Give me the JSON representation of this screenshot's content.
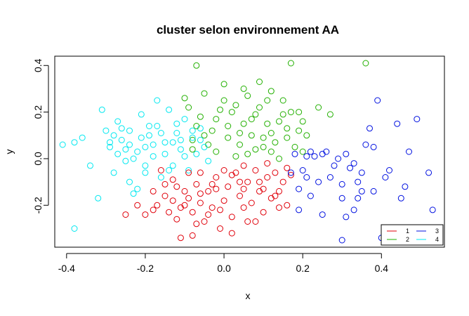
{
  "chart_data": {
    "type": "scatter",
    "title": "cluster selon environnement AA",
    "xlabel": "x",
    "ylabel": "y",
    "xlim": [
      -0.43,
      0.56
    ],
    "ylim": [
      -0.38,
      0.44
    ],
    "xticks": [
      "-0.4",
      "-0.2",
      "0.0",
      "0.2",
      "0.4"
    ],
    "yticks": [
      "-0.2",
      "0.0",
      "0.2",
      "0.4"
    ],
    "xtick_values": [
      -0.4,
      -0.2,
      0.0,
      0.2,
      0.4
    ],
    "ytick_values": [
      -0.2,
      0.0,
      0.2,
      0.4
    ],
    "legend_position": "bottom-right",
    "marker": "open-circle",
    "series": [
      {
        "name": "1",
        "color": "#e0000a",
        "points": [
          [
            -0.25,
            -0.24
          ],
          [
            -0.22,
            -0.2
          ],
          [
            -0.2,
            -0.24
          ],
          [
            -0.18,
            -0.22
          ],
          [
            -0.17,
            -0.2
          ],
          [
            -0.15,
            -0.16
          ],
          [
            -0.14,
            -0.23
          ],
          [
            -0.13,
            -0.18
          ],
          [
            -0.12,
            -0.12
          ],
          [
            -0.11,
            -0.21
          ],
          [
            -0.1,
            -0.14
          ],
          [
            -0.09,
            -0.17
          ],
          [
            -0.08,
            -0.23
          ],
          [
            -0.07,
            -0.11
          ],
          [
            -0.06,
            -0.19
          ],
          [
            -0.05,
            -0.27
          ],
          [
            -0.04,
            -0.14
          ],
          [
            -0.03,
            -0.21
          ],
          [
            -0.02,
            -0.08
          ],
          [
            -0.01,
            -0.3
          ],
          [
            0.0,
            -0.18
          ],
          [
            0.01,
            -0.12
          ],
          [
            0.02,
            -0.25
          ],
          [
            0.03,
            -0.06
          ],
          [
            0.04,
            -0.16
          ],
          [
            0.05,
            -0.21
          ],
          [
            0.06,
            -0.1
          ],
          [
            0.07,
            -0.19
          ],
          [
            0.08,
            -0.05
          ],
          [
            0.09,
            -0.14
          ],
          [
            0.1,
            -0.23
          ],
          [
            0.11,
            -0.08
          ],
          [
            0.12,
            -0.17
          ],
          [
            0.13,
            -0.06
          ],
          [
            0.14,
            -0.14
          ],
          [
            0.15,
            -0.1
          ],
          [
            0.16,
            -0.2
          ],
          [
            0.17,
            -0.07
          ],
          [
            -0.08,
            -0.33
          ],
          [
            -0.11,
            -0.34
          ],
          [
            0.02,
            -0.32
          ],
          [
            -0.16,
            -0.05
          ],
          [
            -0.06,
            -0.06
          ],
          [
            0.0,
            -0.05
          ],
          [
            0.05,
            -0.03
          ],
          [
            -0.13,
            -0.09
          ],
          [
            -0.03,
            -0.11
          ],
          [
            0.1,
            -0.13
          ],
          [
            0.06,
            -0.27
          ],
          [
            -0.18,
            -0.14
          ]
        ]
      },
      {
        "name": "2",
        "color": "#22b000",
        "points": [
          [
            -0.07,
            0.4
          ],
          [
            0.17,
            0.41
          ],
          [
            0.36,
            0.41
          ],
          [
            -0.1,
            0.26
          ],
          [
            0.0,
            0.32
          ],
          [
            0.05,
            0.3
          ],
          [
            0.09,
            0.33
          ],
          [
            0.12,
            0.29
          ],
          [
            -0.05,
            0.28
          ],
          [
            0.15,
            0.25
          ],
          [
            0.19,
            0.2
          ],
          [
            -0.09,
            0.22
          ],
          [
            0.02,
            0.2
          ],
          [
            0.07,
            0.17
          ],
          [
            0.11,
            0.15
          ],
          [
            0.16,
            0.13
          ],
          [
            -0.06,
            0.18
          ],
          [
            -0.03,
            0.12
          ],
          [
            0.01,
            0.09
          ],
          [
            0.04,
            0.06
          ],
          [
            0.08,
            0.04
          ],
          [
            0.13,
            0.07
          ],
          [
            0.18,
            0.05
          ],
          [
            0.21,
            0.1
          ],
          [
            -0.02,
            0.03
          ],
          [
            0.03,
            0.01
          ],
          [
            0.06,
            0.02
          ],
          [
            0.1,
            0.09
          ],
          [
            0.14,
            0.0
          ],
          [
            0.24,
            0.22
          ],
          [
            0.27,
            0.19
          ],
          [
            0.0,
            0.25
          ],
          [
            0.05,
            0.15
          ],
          [
            -0.08,
            0.08
          ],
          [
            0.09,
            0.22
          ],
          [
            0.15,
            0.19
          ],
          [
            0.2,
            0.16
          ],
          [
            0.12,
            0.03
          ],
          [
            -0.04,
            0.06
          ],
          [
            0.07,
            0.1
          ]
        ]
      },
      {
        "name": "3",
        "color": "#0010e0",
        "points": [
          [
            0.18,
            0.02
          ],
          [
            0.2,
            -0.05
          ],
          [
            0.22,
            0.03
          ],
          [
            0.24,
            -0.1
          ],
          [
            0.26,
            0.03
          ],
          [
            0.28,
            -0.03
          ],
          [
            0.3,
            -0.17
          ],
          [
            0.31,
            0.02
          ],
          [
            0.32,
            -0.04
          ],
          [
            0.33,
            -0.22
          ],
          [
            0.34,
            -0.1
          ],
          [
            0.35,
            -0.14
          ],
          [
            0.36,
            0.06
          ],
          [
            0.37,
            0.13
          ],
          [
            0.38,
            -0.14
          ],
          [
            0.39,
            0.25
          ],
          [
            0.4,
            -0.34
          ],
          [
            0.42,
            -0.05
          ],
          [
            0.44,
            0.15
          ],
          [
            0.46,
            -0.12
          ],
          [
            0.47,
            0.03
          ],
          [
            0.49,
            0.17
          ],
          [
            0.52,
            -0.06
          ],
          [
            0.53,
            -0.22
          ],
          [
            0.3,
            -0.35
          ],
          [
            0.35,
            -0.06
          ],
          [
            0.22,
            -0.16
          ],
          [
            0.19,
            -0.22
          ],
          [
            0.25,
            -0.24
          ],
          [
            0.41,
            -0.08
          ],
          [
            0.29,
            0.0
          ],
          [
            0.23,
            0.01
          ],
          [
            0.38,
            0.05
          ],
          [
            0.31,
            -0.25
          ],
          [
            0.45,
            -0.17
          ]
        ]
      },
      {
        "name": "4",
        "color": "#00e8f0",
        "points": [
          [
            -0.41,
            0.06
          ],
          [
            -0.38,
            0.07
          ],
          [
            -0.36,
            0.09
          ],
          [
            -0.34,
            -0.03
          ],
          [
            -0.31,
            0.21
          ],
          [
            -0.3,
            0.12
          ],
          [
            -0.29,
            0.05
          ],
          [
            -0.28,
            -0.06
          ],
          [
            -0.27,
            0.16
          ],
          [
            -0.26,
            0.08
          ],
          [
            -0.25,
            -0.01
          ],
          [
            -0.24,
            0.12
          ],
          [
            -0.23,
            -0.15
          ],
          [
            -0.22,
            0.03
          ],
          [
            -0.21,
            0.19
          ],
          [
            -0.2,
            -0.06
          ],
          [
            -0.19,
            0.1
          ],
          [
            -0.18,
            0.01
          ],
          [
            -0.17,
            0.14
          ],
          [
            -0.16,
            -0.08
          ],
          [
            -0.15,
            0.07
          ],
          [
            -0.14,
            0.21
          ],
          [
            -0.13,
            -0.03
          ],
          [
            -0.12,
            0.11
          ],
          [
            -0.11,
            0.04
          ],
          [
            -0.1,
            0.17
          ],
          [
            -0.09,
            -0.05
          ],
          [
            -0.08,
            0.09
          ],
          [
            -0.07,
            0.02
          ],
          [
            -0.06,
            0.13
          ],
          [
            -0.05,
            0.05
          ],
          [
            -0.04,
            -0.01
          ],
          [
            -0.17,
            0.25
          ],
          [
            -0.32,
            -0.17
          ],
          [
            -0.38,
            -0.3
          ],
          [
            -0.22,
            -0.13
          ],
          [
            -0.27,
            0.02
          ],
          [
            -0.2,
            0.05
          ],
          [
            -0.13,
            0.07
          ],
          [
            -0.24,
            0.06
          ]
        ]
      },
      {
        "name": "",
        "color": "#e0000a",
        "points": [
          [
            -0.02,
            -0.13
          ],
          [
            -0.12,
            -0.26
          ],
          [
            0.14,
            -0.21
          ],
          [
            -0.09,
            -0.06
          ],
          [
            0.04,
            -0.1
          ],
          [
            -0.04,
            -0.24
          ],
          [
            0.11,
            -0.02
          ],
          [
            -0.15,
            -0.11
          ],
          [
            0.08,
            -0.27
          ],
          [
            -0.06,
            -0.15
          ],
          [
            0.02,
            -0.07
          ],
          [
            0.13,
            -0.16
          ],
          [
            -0.1,
            -0.2
          ],
          [
            0.05,
            -0.13
          ],
          [
            -0.01,
            -0.22
          ],
          [
            0.09,
            -0.1
          ],
          [
            -0.07,
            -0.28
          ],
          [
            0.16,
            -0.04
          ]
        ]
      },
      {
        "name": "",
        "color": "#22b000",
        "points": [
          [
            0.03,
            0.23
          ],
          [
            -0.07,
            0.14
          ],
          [
            0.12,
            0.11
          ],
          [
            0.17,
            0.2
          ],
          [
            -0.02,
            0.17
          ],
          [
            0.06,
            0.27
          ],
          [
            0.1,
            0.05
          ],
          [
            0.19,
            0.12
          ],
          [
            -0.05,
            0.1
          ],
          [
            0.14,
            0.16
          ],
          [
            0.01,
            0.14
          ],
          [
            0.08,
            0.19
          ],
          [
            -0.08,
            0.04
          ],
          [
            0.16,
            0.09
          ],
          [
            0.04,
            0.11
          ],
          [
            0.11,
            0.25
          ],
          [
            0.2,
            0.03
          ],
          [
            -0.01,
            0.21
          ]
        ]
      },
      {
        "name": "",
        "color": "#00e8f0",
        "points": [
          [
            -0.28,
            0.1
          ],
          [
            -0.19,
            0.14
          ],
          [
            -0.11,
            0.08
          ],
          [
            -0.23,
            0.0
          ],
          [
            -0.15,
            0.02
          ],
          [
            -0.26,
            0.13
          ],
          [
            -0.08,
            0.12
          ],
          [
            -0.2,
            -0.03
          ],
          [
            -0.12,
            0.15
          ],
          [
            -0.25,
            0.04
          ],
          [
            -0.16,
            0.11
          ],
          [
            -0.29,
            0.07
          ],
          [
            -0.1,
            0.01
          ],
          [
            -0.21,
            0.09
          ],
          [
            -0.14,
            -0.05
          ],
          [
            -0.18,
            0.06
          ],
          [
            -0.06,
            0.08
          ],
          [
            -0.24,
            -0.1
          ]
        ]
      },
      {
        "name": "",
        "color": "#0010e0",
        "points": [
          [
            0.21,
            0.01
          ],
          [
            0.27,
            -0.08
          ],
          [
            0.33,
            -0.02
          ],
          [
            0.19,
            -0.13
          ],
          [
            0.25,
            0.02
          ],
          [
            0.3,
            -0.11
          ],
          [
            0.21,
            -0.08
          ],
          [
            0.34,
            -0.17
          ],
          [
            0.17,
            -0.06
          ]
        ]
      }
    ]
  }
}
